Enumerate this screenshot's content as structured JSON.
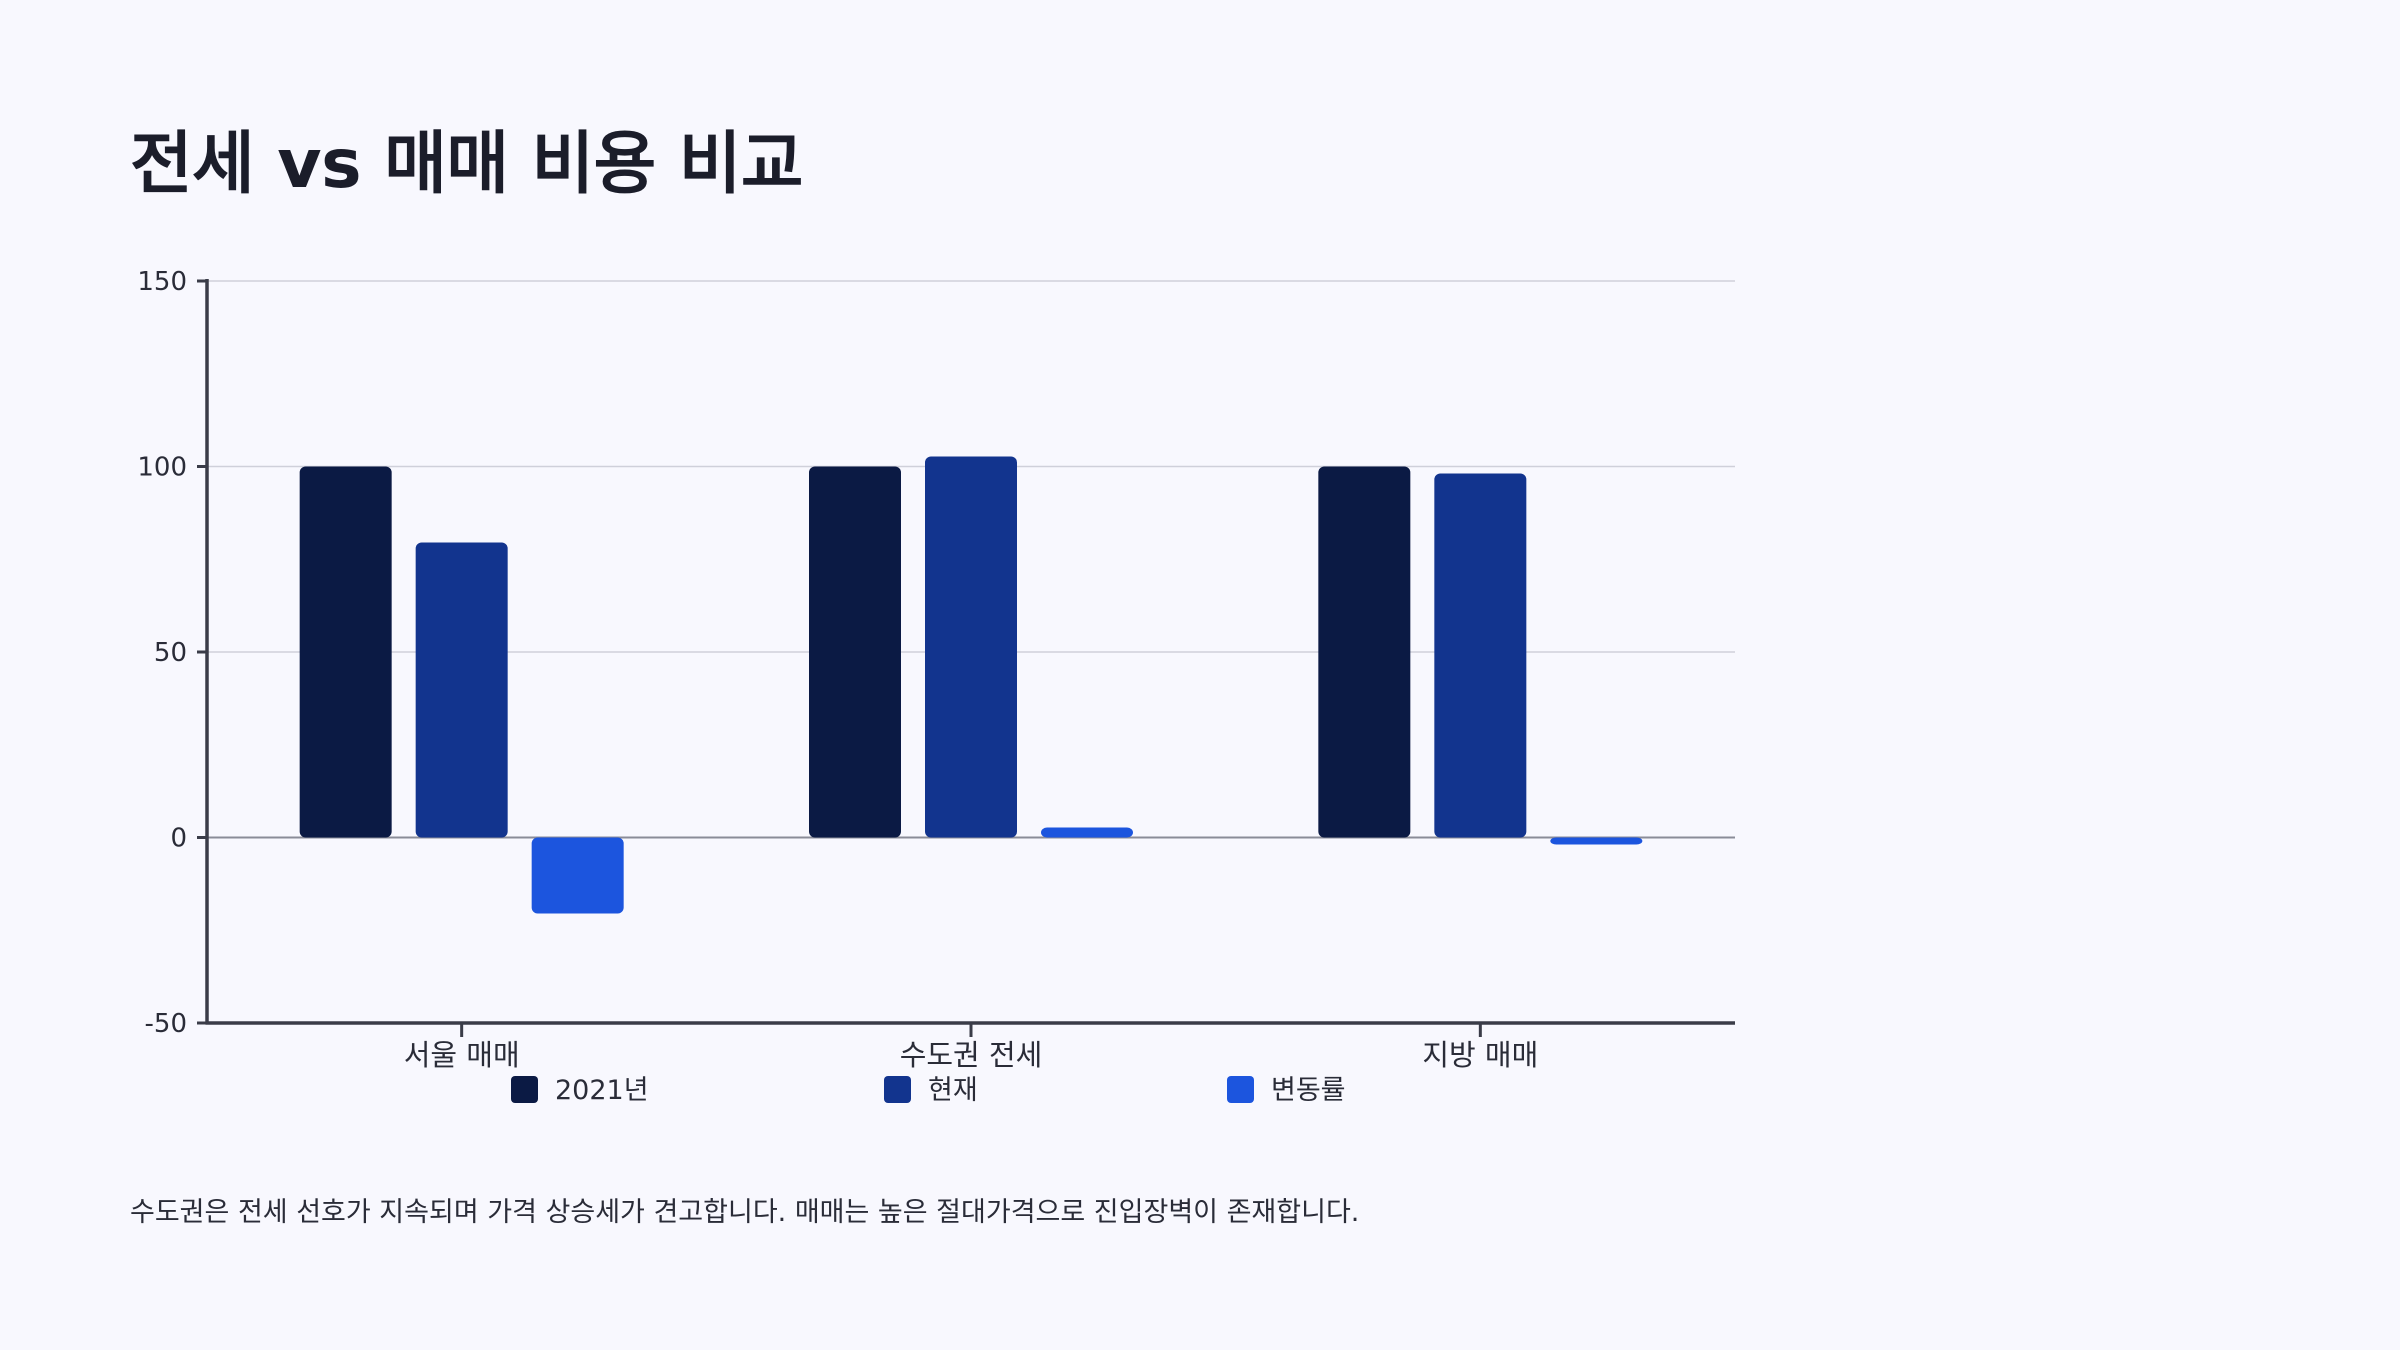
{
  "page": {
    "title": "전세 vs 매매 비용 비교",
    "note": "수도권은 전세 선호가 지속되며 가격 상승세가 견고합니다. 매매는 높은 절대가격으로 진입장벽이 존재합니다."
  },
  "chart_data": {
    "type": "bar",
    "categories": [
      "서울 매매",
      "수도권 전세",
      "지방 매매"
    ],
    "series": [
      {
        "name": "2021년",
        "values": [
          100,
          100,
          100
        ],
        "color": "#0b1a44"
      },
      {
        "name": "현재",
        "values": [
          79.5,
          102.7,
          98.1
        ],
        "color": "#12348e"
      },
      {
        "name": "변동률",
        "values": [
          -20.5,
          2.7,
          -1.9
        ],
        "color": "#1c55de"
      }
    ],
    "yticks": [
      -50,
      0,
      50,
      100,
      150
    ],
    "ylim": [
      -50,
      150
    ],
    "grid": true,
    "legend": "bottom",
    "xlabel": "",
    "ylabel": ""
  }
}
